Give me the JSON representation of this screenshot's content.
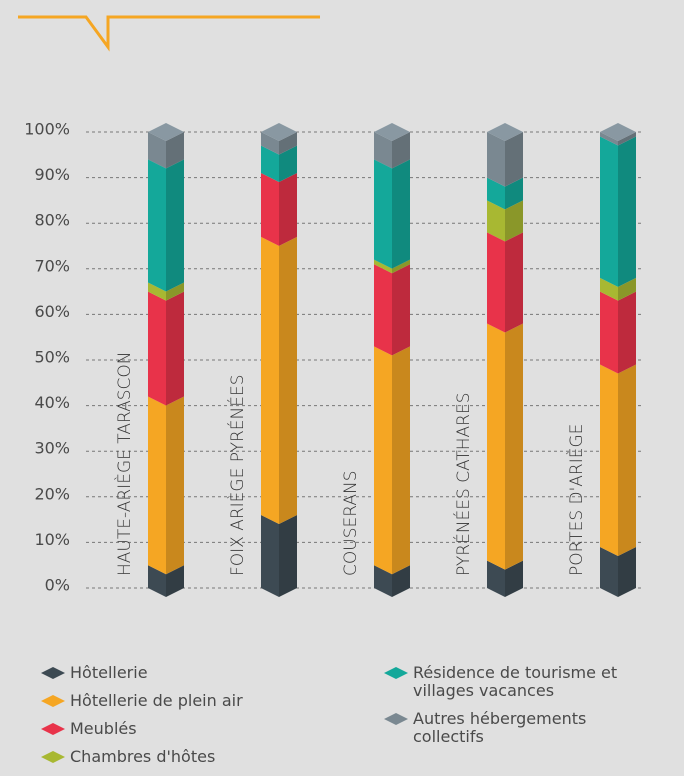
{
  "chart_data": {
    "type": "bar",
    "stacked": true,
    "categories": [
      "HAUTE-ARIÈGE TARASCON",
      "FOIX ARIÈGE PYRÉNÉES",
      "COUSERANS",
      "PYRÉNÉES CATHARES",
      "PORTES D'ARIÈGE"
    ],
    "series": [
      {
        "name": "Hôtellerie",
        "color": "#3d4a53",
        "values": [
          5,
          16,
          5,
          6,
          9
        ]
      },
      {
        "name": "Hôtellerie de plein air",
        "color": "#f5a623",
        "values": [
          37,
          61,
          48,
          52,
          40
        ]
      },
      {
        "name": "Meublés",
        "color": "#e8334a",
        "values": [
          23,
          14,
          18,
          20,
          16
        ]
      },
      {
        "name": "Chambres d'hôtes",
        "color": "#a8b832",
        "values": [
          2,
          0,
          1,
          7,
          3
        ]
      },
      {
        "name": "Résidence de tourisme et villages vacances",
        "color": "#14a89a",
        "values": [
          27,
          6,
          22,
          5,
          31
        ]
      },
      {
        "name": "Autres hébergements collectifs",
        "color": "#7a8891",
        "values": [
          6,
          3,
          6,
          10,
          1
        ]
      }
    ],
    "ylim": [
      0,
      100
    ],
    "yticks": [
      {
        "value": 0,
        "label": "0%"
      },
      {
        "value": 10,
        "label": "10%"
      },
      {
        "value": 20,
        "label": "20%"
      },
      {
        "value": 30,
        "label": "30%"
      },
      {
        "value": 40,
        "label": "40%"
      },
      {
        "value": 50,
        "label": "50%"
      },
      {
        "value": 60,
        "label": "60%"
      },
      {
        "value": 70,
        "label": "70%"
      },
      {
        "value": 80,
        "label": "80%"
      },
      {
        "value": 90,
        "label": "90%"
      },
      {
        "value": 100,
        "label": "100%"
      }
    ],
    "grid": true
  }
}
